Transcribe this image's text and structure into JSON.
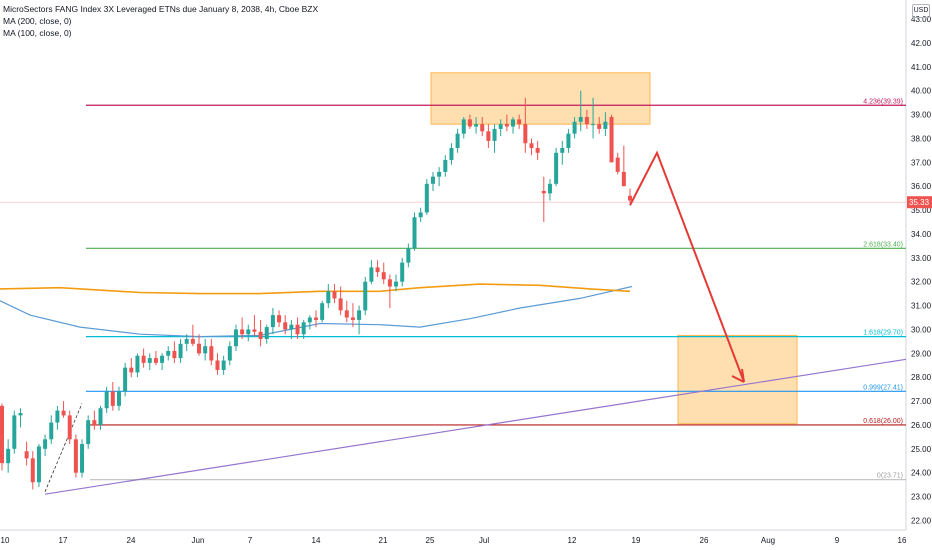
{
  "legend": {
    "title": "MicroSectors FANG Index 3X Leveraged ETNs due January 8, 2038, 4h, Cboe BZX",
    "ma200": "MA (200, close, 0)",
    "ma100": "MA (100, close, 0)"
  },
  "currency": "USD",
  "colors": {
    "up": "#26a69a",
    "down": "#ef5350",
    "ma200": "#f39c12",
    "ma100": "#5b9bd5",
    "trendline": "#9575cd",
    "arrow": "#e53935",
    "zone": "#ffb74d",
    "last_price": "#ef5350"
  },
  "chart_data": {
    "type": "candlestick",
    "ylim": [
      21.6,
      43.8
    ],
    "y_ticks": [
      "22.00",
      "23.00",
      "24.00",
      "25.00",
      "26.00",
      "27.00",
      "28.00",
      "29.00",
      "30.00",
      "31.00",
      "32.00",
      "33.00",
      "34.00",
      "35.00",
      "36.00",
      "37.00",
      "38.00",
      "39.00",
      "40.00",
      "41.00",
      "42.00",
      "43.00"
    ],
    "x_ticks": [
      "10",
      "17",
      "24",
      "Jun",
      "7",
      "14",
      "21",
      "25",
      "Jul",
      "12",
      "19",
      "26",
      "Aug",
      "9",
      "16"
    ],
    "last_price": "35.33",
    "fib_levels": [
      {
        "label": "4.236(39.39)",
        "value": 39.39,
        "color": "#c2185b"
      },
      {
        "label": "2.618(33.40)",
        "value": 33.4,
        "color": "#4caf50"
      },
      {
        "label": "1.618(29.70)",
        "value": 29.7,
        "color": "#00bcd4"
      },
      {
        "label": "0.999(27.41)",
        "value": 27.41,
        "color": "#2196f3"
      },
      {
        "label": "0.618(26.00)",
        "value": 26.0,
        "color": "#b71c1c"
      },
      {
        "label": "0(23.71)",
        "value": 23.71,
        "color": "#9e9e9e"
      }
    ],
    "candles": [
      [
        26.8,
        26.9,
        24.1,
        24.4
      ],
      [
        24.4,
        25.4,
        24.0,
        25.0
      ],
      [
        25.0,
        26.6,
        24.8,
        26.4
      ],
      [
        26.4,
        26.7,
        25.9,
        26.5
      ],
      [
        24.9,
        25.3,
        24.3,
        24.6
      ],
      [
        24.6,
        24.9,
        23.3,
        23.6
      ],
      [
        23.6,
        25.2,
        23.4,
        25.1
      ],
      [
        25.0,
        25.6,
        24.7,
        25.4
      ],
      [
        25.4,
        26.4,
        25.2,
        26.1
      ],
      [
        26.1,
        26.8,
        25.8,
        26.6
      ],
      [
        26.6,
        27.0,
        26.3,
        26.4
      ],
      [
        26.4,
        26.6,
        25.2,
        25.4
      ],
      [
        25.4,
        25.6,
        23.8,
        24.0
      ],
      [
        24.0,
        25.4,
        23.8,
        25.2
      ],
      [
        25.2,
        26.4,
        25.0,
        26.2
      ],
      [
        26.2,
        26.6,
        25.8,
        26.0
      ],
      [
        26.0,
        26.8,
        25.8,
        26.7
      ],
      [
        26.7,
        27.6,
        26.5,
        27.4
      ],
      [
        27.4,
        27.8,
        26.6,
        26.8
      ],
      [
        26.8,
        27.6,
        26.6,
        27.4
      ],
      [
        27.4,
        28.6,
        27.2,
        28.4
      ],
      [
        28.4,
        28.8,
        28.0,
        28.2
      ],
      [
        28.2,
        29.0,
        28.0,
        28.9
      ],
      [
        28.9,
        29.2,
        28.4,
        28.6
      ],
      [
        28.6,
        29.0,
        28.3,
        28.8
      ],
      [
        28.8,
        29.1,
        28.5,
        28.6
      ],
      [
        28.6,
        29.0,
        28.3,
        28.9
      ],
      [
        28.9,
        29.3,
        28.7,
        29.1
      ],
      [
        29.1,
        29.5,
        28.6,
        28.8
      ],
      [
        28.8,
        29.6,
        28.6,
        29.4
      ],
      [
        29.4,
        29.8,
        29.1,
        29.6
      ],
      [
        29.6,
        30.2,
        29.3,
        29.4
      ],
      [
        29.4,
        29.8,
        28.9,
        29.0
      ],
      [
        29.0,
        29.6,
        28.7,
        29.3
      ],
      [
        29.3,
        29.6,
        28.5,
        28.7
      ],
      [
        28.7,
        29.0,
        28.1,
        28.3
      ],
      [
        28.3,
        28.9,
        28.1,
        28.7
      ],
      [
        28.7,
        29.5,
        28.5,
        29.3
      ],
      [
        29.3,
        30.2,
        29.1,
        30.0
      ],
      [
        30.0,
        30.5,
        29.6,
        29.8
      ],
      [
        29.8,
        30.2,
        29.5,
        30.0
      ],
      [
        30.0,
        30.6,
        29.7,
        29.9
      ],
      [
        29.9,
        30.4,
        29.3,
        29.6
      ],
      [
        29.6,
        30.2,
        29.4,
        30.1
      ],
      [
        30.1,
        30.9,
        29.8,
        30.6
      ],
      [
        30.6,
        30.8,
        30.1,
        30.3
      ],
      [
        30.3,
        30.6,
        29.8,
        30.0
      ],
      [
        30.0,
        30.4,
        29.6,
        30.2
      ],
      [
        30.2,
        30.5,
        29.6,
        29.8
      ],
      [
        29.8,
        30.4,
        29.6,
        30.3
      ],
      [
        30.3,
        30.6,
        30.0,
        30.5
      ],
      [
        30.5,
        30.8,
        30.1,
        30.4
      ],
      [
        30.4,
        31.2,
        30.3,
        31.1
      ],
      [
        31.1,
        31.9,
        30.9,
        31.6
      ],
      [
        31.6,
        31.9,
        31.1,
        31.3
      ],
      [
        31.3,
        31.8,
        30.6,
        30.8
      ],
      [
        30.8,
        31.2,
        30.3,
        30.5
      ],
      [
        30.5,
        31.1,
        30.1,
        30.4
      ],
      [
        30.4,
        31.0,
        29.8,
        30.8
      ],
      [
        30.8,
        32.2,
        30.6,
        32.0
      ],
      [
        32.0,
        32.9,
        31.9,
        32.6
      ],
      [
        32.6,
        32.9,
        32.2,
        32.4
      ],
      [
        32.4,
        32.8,
        31.9,
        32.1
      ],
      [
        32.1,
        32.3,
        30.9,
        31.8
      ],
      [
        31.8,
        32.3,
        31.6,
        32.0
      ],
      [
        32.0,
        33.0,
        31.8,
        32.8
      ],
      [
        32.8,
        33.6,
        32.6,
        33.4
      ],
      [
        33.4,
        34.9,
        33.3,
        34.7
      ],
      [
        34.7,
        35.1,
        34.5,
        34.9
      ],
      [
        34.9,
        36.3,
        34.8,
        36.1
      ],
      [
        36.1,
        36.6,
        35.8,
        36.4
      ],
      [
        36.4,
        36.8,
        36.0,
        36.6
      ],
      [
        36.6,
        37.3,
        36.4,
        37.1
      ],
      [
        37.1,
        37.8,
        36.9,
        37.6
      ],
      [
        37.6,
        38.4,
        37.4,
        38.2
      ],
      [
        38.2,
        38.9,
        38.0,
        38.8
      ],
      [
        38.8,
        39.0,
        38.4,
        38.5
      ],
      [
        38.5,
        38.9,
        38.2,
        38.6
      ],
      [
        38.6,
        38.9,
        38.1,
        38.3
      ],
      [
        38.3,
        38.6,
        37.6,
        37.9
      ],
      [
        37.9,
        38.6,
        37.4,
        38.4
      ],
      [
        38.4,
        38.8,
        38.1,
        38.6
      ],
      [
        38.6,
        39.0,
        38.3,
        38.5
      ],
      [
        38.5,
        38.9,
        38.2,
        38.8
      ],
      [
        38.8,
        39.0,
        38.4,
        38.6
      ],
      [
        38.6,
        39.7,
        37.4,
        37.8
      ],
      [
        37.8,
        38.0,
        37.3,
        37.6
      ],
      [
        37.6,
        37.9,
        37.1,
        37.4
      ],
      [
        35.8,
        36.4,
        34.5,
        35.7
      ],
      [
        35.7,
        36.3,
        35.4,
        36.1
      ],
      [
        36.1,
        37.6,
        36.0,
        37.4
      ],
      [
        37.4,
        37.9,
        36.9,
        37.6
      ],
      [
        37.6,
        38.4,
        37.4,
        38.2
      ],
      [
        38.2,
        38.9,
        38.0,
        38.7
      ],
      [
        38.7,
        40.0,
        38.3,
        38.9
      ],
      [
        38.9,
        39.2,
        38.4,
        38.6
      ],
      [
        38.6,
        39.7,
        38.0,
        38.6
      ],
      [
        38.6,
        38.9,
        38.2,
        38.4
      ],
      [
        38.4,
        39.1,
        38.1,
        38.7
      ],
      [
        38.9,
        39.0,
        37.0,
        37.0
      ],
      [
        37.2,
        37.4,
        36.5,
        36.6
      ],
      [
        36.6,
        37.7,
        36.0,
        36.0
      ],
      [
        35.6,
        35.9,
        35.3,
        35.4
      ]
    ]
  }
}
